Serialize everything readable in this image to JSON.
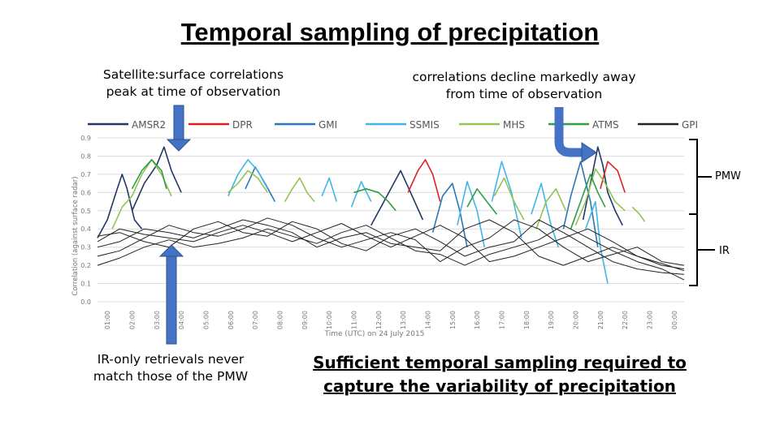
{
  "page": {
    "title": "Temporal sampling of precipitation",
    "callout_left": "Satellite:surface correlations peak at time of observation",
    "callout_right": "correlations decline markedly away from time of observation",
    "callout_ir": "IR-only retrievals never match those of the PMW",
    "bottom_text": "Sufficient temporal sampling required to capture the variability of precipitation",
    "bracket_pmw": "PMW",
    "bracket_ir": "IR",
    "colors": {
      "arrow": "#4472c4",
      "bracket": "#000000"
    }
  },
  "chart_data": {
    "type": "line",
    "xlabel": "Time (UTC) on 24 July 2015",
    "ylabel": "Correlation (against surface radar)",
    "ylim": [
      0.0,
      0.9
    ],
    "xlim": [
      0.6,
      24.4
    ],
    "yticks": [
      "0.0",
      "0.1",
      "0.2",
      "0.3",
      "0.4",
      "0.5",
      "0.6",
      "0.7",
      "0.8",
      "0.9"
    ],
    "xticks": [
      "01:00",
      "02:00",
      "03:00",
      "04:00",
      "05:00",
      "06:00",
      "07:00",
      "08:00",
      "09:00",
      "10:00",
      "11:00",
      "12:00",
      "13:00",
      "14:00",
      "15:00",
      "16:00",
      "17:00",
      "18:00",
      "19:00",
      "20:00",
      "21:00",
      "22:00",
      "23:00",
      "00:00"
    ],
    "grid": true,
    "legend_position": "top",
    "series": [
      {
        "name": "AMSR2",
        "color": "#1f3864",
        "segments": [
          [
            [
              0.6,
              0.35
            ],
            [
              1.0,
              0.45
            ],
            [
              1.4,
              0.62
            ],
            [
              1.6,
              0.7
            ],
            [
              1.8,
              0.62
            ],
            [
              2.1,
              0.45
            ],
            [
              2.4,
              0.4
            ]
          ],
          [
            [
              2.0,
              0.5
            ],
            [
              2.5,
              0.65
            ],
            [
              3.0,
              0.75
            ],
            [
              3.3,
              0.85
            ],
            [
              3.6,
              0.72
            ],
            [
              4.0,
              0.6
            ]
          ],
          [
            [
              11.7,
              0.42
            ],
            [
              12.1,
              0.52
            ],
            [
              12.5,
              0.62
            ],
            [
              12.9,
              0.72
            ],
            [
              13.3,
              0.6
            ],
            [
              13.8,
              0.45
            ]
          ],
          [
            [
              20.3,
              0.45
            ],
            [
              20.6,
              0.65
            ],
            [
              20.9,
              0.85
            ],
            [
              21.1,
              0.75
            ],
            [
              21.3,
              0.6
            ],
            [
              21.6,
              0.5
            ],
            [
              21.9,
              0.42
            ]
          ]
        ]
      },
      {
        "name": "DPR",
        "color": "#e02020",
        "segments": [
          [
            [
              13.2,
              0.6
            ],
            [
              13.6,
              0.72
            ],
            [
              13.9,
              0.78
            ],
            [
              14.2,
              0.7
            ],
            [
              14.5,
              0.55
            ]
          ],
          [
            [
              21.0,
              0.62
            ],
            [
              21.3,
              0.77
            ],
            [
              21.7,
              0.72
            ],
            [
              22.0,
              0.6
            ]
          ]
        ]
      },
      {
        "name": "GMI",
        "color": "#2e75b6",
        "segments": [
          [
            [
              6.6,
              0.62
            ],
            [
              7.0,
              0.74
            ],
            [
              7.4,
              0.65
            ],
            [
              7.8,
              0.55
            ]
          ],
          [
            [
              14.2,
              0.38
            ],
            [
              14.6,
              0.58
            ],
            [
              15.0,
              0.65
            ],
            [
              15.3,
              0.5
            ],
            [
              15.6,
              0.3
            ]
          ],
          [
            [
              19.5,
              0.4
            ],
            [
              19.8,
              0.58
            ],
            [
              20.2,
              0.77
            ],
            [
              20.6,
              0.55
            ],
            [
              20.9,
              0.3
            ]
          ]
        ]
      },
      {
        "name": "SSMIS",
        "color": "#41b6e6",
        "segments": [
          [
            [
              5.9,
              0.58
            ],
            [
              6.3,
              0.7
            ],
            [
              6.7,
              0.78
            ],
            [
              7.1,
              0.72
            ],
            [
              7.5,
              0.62
            ]
          ],
          [
            [
              9.7,
              0.58
            ],
            [
              10.0,
              0.68
            ],
            [
              10.3,
              0.55
            ]
          ],
          [
            [
              10.9,
              0.52
            ],
            [
              11.3,
              0.66
            ],
            [
              11.7,
              0.55
            ]
          ],
          [
            [
              15.2,
              0.42
            ],
            [
              15.6,
              0.66
            ],
            [
              16.0,
              0.5
            ],
            [
              16.3,
              0.3
            ]
          ],
          [
            [
              16.6,
              0.55
            ],
            [
              17.0,
              0.77
            ],
            [
              17.4,
              0.6
            ],
            [
              17.8,
              0.35
            ]
          ],
          [
            [
              18.2,
              0.48
            ],
            [
              18.6,
              0.65
            ],
            [
              19.0,
              0.42
            ],
            [
              19.3,
              0.3
            ]
          ],
          [
            [
              20.4,
              0.4
            ],
            [
              20.8,
              0.55
            ],
            [
              21.0,
              0.3
            ],
            [
              21.3,
              0.1
            ]
          ]
        ]
      },
      {
        "name": "MHS",
        "color": "#92c353",
        "segments": [
          [
            [
              1.2,
              0.4
            ],
            [
              1.6,
              0.52
            ],
            [
              2.0,
              0.58
            ],
            [
              2.4,
              0.7
            ],
            [
              2.8,
              0.78
            ],
            [
              3.2,
              0.7
            ],
            [
              3.6,
              0.58
            ]
          ],
          [
            [
              5.9,
              0.6
            ],
            [
              6.3,
              0.65
            ],
            [
              6.7,
              0.72
            ],
            [
              7.1,
              0.68
            ],
            [
              7.5,
              0.6
            ]
          ],
          [
            [
              8.2,
              0.55
            ],
            [
              8.5,
              0.62
            ],
            [
              8.8,
              0.68
            ],
            [
              9.1,
              0.6
            ],
            [
              9.4,
              0.55
            ]
          ],
          [
            [
              16.7,
              0.58
            ],
            [
              17.1,
              0.68
            ],
            [
              17.5,
              0.55
            ],
            [
              17.9,
              0.45
            ]
          ],
          [
            [
              18.4,
              0.4
            ],
            [
              18.8,
              0.55
            ],
            [
              19.2,
              0.62
            ],
            [
              19.6,
              0.5
            ]
          ],
          [
            [
              20.0,
              0.42
            ],
            [
              20.4,
              0.55
            ],
            [
              20.8,
              0.73
            ],
            [
              21.2,
              0.65
            ],
            [
              21.6,
              0.55
            ],
            [
              22.0,
              0.5
            ]
          ],
          [
            [
              22.3,
              0.52
            ],
            [
              22.6,
              0.48
            ],
            [
              22.8,
              0.44
            ]
          ]
        ]
      },
      {
        "name": "ATMS",
        "color": "#2e9e44",
        "segments": [
          [
            [
              2.0,
              0.62
            ],
            [
              2.4,
              0.72
            ],
            [
              2.8,
              0.78
            ],
            [
              3.2,
              0.72
            ],
            [
              3.4,
              0.62
            ]
          ],
          [
            [
              11.0,
              0.6
            ],
            [
              11.5,
              0.62
            ],
            [
              12.0,
              0.6
            ],
            [
              12.4,
              0.55
            ],
            [
              12.7,
              0.5
            ]
          ],
          [
            [
              15.6,
              0.52
            ],
            [
              16.0,
              0.62
            ],
            [
              16.4,
              0.55
            ],
            [
              16.8,
              0.48
            ]
          ],
          [
            [
              19.8,
              0.4
            ],
            [
              20.2,
              0.55
            ],
            [
              20.6,
              0.7
            ],
            [
              20.9,
              0.6
            ],
            [
              21.2,
              0.52
            ]
          ]
        ]
      },
      {
        "name": "GPI",
        "color": "#222222",
        "segments": [
          [
            [
              0.6,
              0.3
            ],
            [
              1.5,
              0.33
            ],
            [
              2.5,
              0.4
            ],
            [
              3.5,
              0.38
            ],
            [
              4.5,
              0.35
            ],
            [
              5.5,
              0.4
            ],
            [
              6.5,
              0.45
            ],
            [
              7.5,
              0.42
            ],
            [
              8.5,
              0.38
            ],
            [
              9.5,
              0.3
            ],
            [
              10.5,
              0.35
            ],
            [
              11.5,
              0.38
            ],
            [
              12.5,
              0.32
            ],
            [
              13.5,
              0.3
            ],
            [
              14.5,
              0.28
            ],
            [
              15.5,
              0.4
            ],
            [
              16.5,
              0.45
            ],
            [
              17.5,
              0.38
            ],
            [
              18.5,
              0.25
            ],
            [
              19.5,
              0.2
            ],
            [
              20.5,
              0.25
            ],
            [
              21.5,
              0.3
            ],
            [
              22.5,
              0.25
            ],
            [
              23.5,
              0.2
            ],
            [
              24.4,
              0.18
            ]
          ],
          [
            [
              0.6,
              0.25
            ],
            [
              1.5,
              0.28
            ],
            [
              2.5,
              0.35
            ],
            [
              3.5,
              0.42
            ],
            [
              4.5,
              0.38
            ],
            [
              5.5,
              0.36
            ],
            [
              6.5,
              0.4
            ],
            [
              7.5,
              0.46
            ],
            [
              8.5,
              0.42
            ],
            [
              9.5,
              0.35
            ],
            [
              10.5,
              0.3
            ],
            [
              11.5,
              0.34
            ],
            [
              12.5,
              0.38
            ],
            [
              13.5,
              0.34
            ],
            [
              14.5,
              0.22
            ],
            [
              15.5,
              0.3
            ],
            [
              16.5,
              0.35
            ],
            [
              17.5,
              0.45
            ],
            [
              18.5,
              0.4
            ],
            [
              19.5,
              0.3
            ],
            [
              20.5,
              0.22
            ],
            [
              21.5,
              0.26
            ],
            [
              22.5,
              0.3
            ],
            [
              23.5,
              0.22
            ],
            [
              24.4,
              0.2
            ]
          ],
          [
            [
              0.6,
              0.36
            ],
            [
              1.5,
              0.38
            ],
            [
              2.5,
              0.33
            ],
            [
              3.5,
              0.3
            ],
            [
              4.5,
              0.4
            ],
            [
              5.5,
              0.44
            ],
            [
              6.5,
              0.38
            ],
            [
              7.5,
              0.36
            ],
            [
              8.5,
              0.44
            ],
            [
              9.5,
              0.4
            ],
            [
              10.5,
              0.32
            ],
            [
              11.5,
              0.28
            ],
            [
              12.5,
              0.36
            ],
            [
              13.5,
              0.4
            ],
            [
              14.5,
              0.33
            ],
            [
              15.5,
              0.25
            ],
            [
              16.5,
              0.3
            ],
            [
              17.5,
              0.33
            ],
            [
              18.5,
              0.45
            ],
            [
              19.5,
              0.38
            ],
            [
              20.5,
              0.3
            ],
            [
              21.5,
              0.22
            ],
            [
              22.5,
              0.18
            ],
            [
              23.5,
              0.16
            ],
            [
              24.4,
              0.15
            ]
          ],
          [
            [
              0.6,
              0.2
            ],
            [
              1.5,
              0.24
            ],
            [
              2.5,
              0.3
            ],
            [
              3.5,
              0.34
            ],
            [
              4.5,
              0.3
            ],
            [
              5.5,
              0.32
            ],
            [
              6.5,
              0.35
            ],
            [
              7.5,
              0.4
            ],
            [
              8.5,
              0.36
            ],
            [
              9.5,
              0.32
            ],
            [
              10.5,
              0.38
            ],
            [
              11.5,
              0.42
            ],
            [
              12.5,
              0.35
            ],
            [
              13.5,
              0.28
            ],
            [
              14.5,
              0.26
            ],
            [
              15.5,
              0.2
            ],
            [
              16.5,
              0.26
            ],
            [
              17.5,
              0.3
            ],
            [
              18.5,
              0.34
            ],
            [
              19.5,
              0.42
            ],
            [
              20.5,
              0.35
            ],
            [
              21.5,
              0.28
            ],
            [
              22.5,
              0.22
            ],
            [
              23.5,
              0.18
            ],
            [
              24.4,
              0.12
            ]
          ],
          [
            [
              0.6,
              0.33
            ],
            [
              1.5,
              0.4
            ],
            [
              2.5,
              0.37
            ],
            [
              3.5,
              0.35
            ],
            [
              4.5,
              0.33
            ],
            [
              5.5,
              0.38
            ],
            [
              6.5,
              0.42
            ],
            [
              7.5,
              0.38
            ],
            [
              8.5,
              0.33
            ],
            [
              9.5,
              0.38
            ],
            [
              10.5,
              0.43
            ],
            [
              11.5,
              0.36
            ],
            [
              12.5,
              0.3
            ],
            [
              13.5,
              0.36
            ],
            [
              14.5,
              0.42
            ],
            [
              15.5,
              0.35
            ],
            [
              16.5,
              0.22
            ],
            [
              17.5,
              0.25
            ],
            [
              18.5,
              0.3
            ],
            [
              19.5,
              0.35
            ],
            [
              20.5,
              0.4
            ],
            [
              21.5,
              0.33
            ],
            [
              22.5,
              0.25
            ],
            [
              23.5,
              0.21
            ],
            [
              24.4,
              0.17
            ]
          ]
        ]
      }
    ]
  }
}
